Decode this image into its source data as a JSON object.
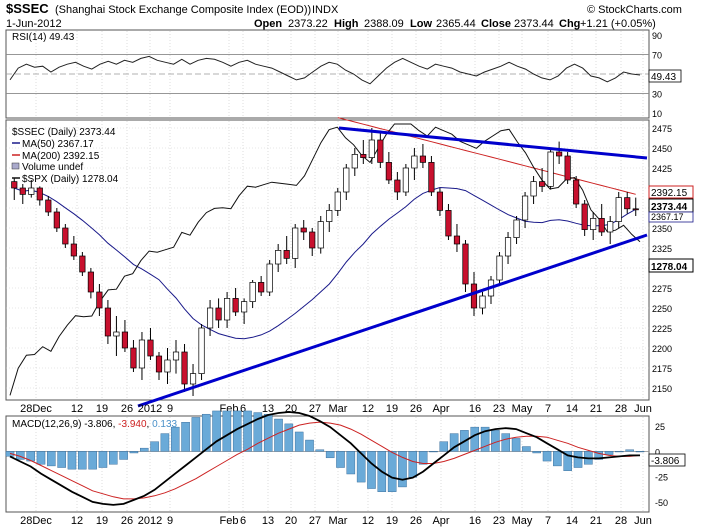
{
  "header": {
    "symbol": "$SSEC",
    "name": "(Shanghai Stock Exchange Composite Index (EOD))",
    "exchange": "INDX",
    "date": "1-Jun-2012",
    "open_label": "Open",
    "open": "2373.22",
    "high_label": "High",
    "high": "2388.09",
    "low_label": "Low",
    "low": "2365.44",
    "close_label": "Close",
    "close": "2373.44",
    "chg_label": "Chg",
    "chg": "+1.21 (+0.05%)",
    "watermark": "© StockCharts.com"
  },
  "x_axis": {
    "labels": [
      "28Dec",
      "12",
      "19",
      "26",
      "2012",
      "9",
      "Feb",
      "6",
      "13",
      "20",
      "27",
      "Mar",
      "12",
      "19",
      "26",
      "Apr",
      "16",
      "23",
      "May",
      "7",
      "14",
      "21",
      "28",
      "Jun"
    ]
  },
  "rsi": {
    "legend": "RSI(14) 49.43",
    "ticks": [
      "90",
      "70",
      "50",
      "30",
      "10"
    ],
    "last": "49.43",
    "values": [
      44,
      56,
      60,
      57,
      58,
      52,
      57,
      60,
      62,
      58,
      55,
      60,
      63,
      60,
      64,
      62,
      66,
      68,
      64,
      62,
      60,
      65,
      60,
      64,
      66,
      65,
      62,
      58,
      62,
      64,
      60,
      58,
      56,
      52,
      48,
      44,
      46,
      52,
      58,
      62,
      60,
      54,
      50,
      44,
      40,
      48,
      56,
      62,
      66,
      62,
      58,
      55,
      60,
      58,
      56,
      52,
      50,
      48,
      52,
      55,
      58,
      62,
      58,
      55,
      50,
      46,
      44,
      48,
      56,
      60,
      56,
      48,
      46,
      42,
      46,
      52,
      50,
      49
    ]
  },
  "price": {
    "legend_main": "$SSEC (Daily) 2373.44",
    "legend_ma50": "MA(50) 2367.17",
    "legend_ma200": "MA(200) 2392.15",
    "legend_vol": "Volume undef",
    "legend_spx": "$SPX (Daily) 1278.04",
    "ticks": [
      "2475",
      "2450",
      "2425",
      "2400",
      "2375",
      "2350",
      "2325",
      "2300",
      "2275",
      "2250",
      "2225",
      "2200",
      "2175",
      "2150"
    ],
    "tag_ma200": "2392.15",
    "tag_close": "2373.44",
    "tag_ma50": "2367.17",
    "tag_spx": "1278.04",
    "colors": {
      "ma50": "#1a1a8a",
      "ma200": "#cc2222",
      "trend": "#0000cc",
      "up": "#ffffff",
      "down": "#c8102e"
    }
  },
  "chart_data": {
    "type": "candlestick",
    "series": [
      {
        "name": "$SSEC (Daily)",
        "ohlc": [
          [
            2408,
            2412,
            2385,
            2400
          ],
          [
            2400,
            2405,
            2380,
            2392
          ],
          [
            2392,
            2410,
            2388,
            2400
          ],
          [
            2400,
            2402,
            2378,
            2385
          ],
          [
            2385,
            2390,
            2365,
            2370
          ],
          [
            2370,
            2375,
            2345,
            2350
          ],
          [
            2350,
            2355,
            2325,
            2330
          ],
          [
            2330,
            2340,
            2310,
            2315
          ],
          [
            2315,
            2320,
            2290,
            2295
          ],
          [
            2295,
            2300,
            2262,
            2270
          ],
          [
            2270,
            2280,
            2240,
            2250
          ],
          [
            2250,
            2260,
            2205,
            2215
          ],
          [
            2215,
            2240,
            2190,
            2220
          ],
          [
            2220,
            2235,
            2195,
            2200
          ],
          [
            2200,
            2210,
            2170,
            2175
          ],
          [
            2175,
            2220,
            2160,
            2210
          ],
          [
            2210,
            2225,
            2185,
            2190
          ],
          [
            2190,
            2195,
            2160,
            2170
          ],
          [
            2170,
            2200,
            2155,
            2185
          ],
          [
            2185,
            2210,
            2168,
            2195
          ],
          [
            2195,
            2205,
            2145,
            2155
          ],
          [
            2155,
            2180,
            2140,
            2168
          ],
          [
            2168,
            2230,
            2160,
            2225
          ],
          [
            2225,
            2260,
            2215,
            2250
          ],
          [
            2250,
            2262,
            2225,
            2235
          ],
          [
            2235,
            2270,
            2225,
            2262
          ],
          [
            2262,
            2275,
            2240,
            2245
          ],
          [
            2245,
            2262,
            2230,
            2258
          ],
          [
            2258,
            2285,
            2250,
            2282
          ],
          [
            2282,
            2290,
            2265,
            2270
          ],
          [
            2270,
            2310,
            2265,
            2305
          ],
          [
            2305,
            2330,
            2295,
            2322
          ],
          [
            2322,
            2340,
            2305,
            2312
          ],
          [
            2312,
            2355,
            2300,
            2350
          ],
          [
            2350,
            2360,
            2335,
            2345
          ],
          [
            2345,
            2350,
            2315,
            2325
          ],
          [
            2325,
            2365,
            2318,
            2358
          ],
          [
            2358,
            2380,
            2345,
            2372
          ],
          [
            2372,
            2400,
            2365,
            2395
          ],
          [
            2395,
            2430,
            2385,
            2425
          ],
          [
            2425,
            2450,
            2415,
            2442
          ],
          [
            2442,
            2460,
            2430,
            2438
          ],
          [
            2438,
            2475,
            2430,
            2460
          ],
          [
            2460,
            2470,
            2425,
            2432
          ],
          [
            2432,
            2445,
            2405,
            2410
          ],
          [
            2410,
            2420,
            2385,
            2395
          ],
          [
            2395,
            2430,
            2390,
            2425
          ],
          [
            2425,
            2450,
            2410,
            2440
          ],
          [
            2440,
            2455,
            2425,
            2432
          ],
          [
            2432,
            2440,
            2390,
            2395
          ],
          [
            2395,
            2400,
            2365,
            2372
          ],
          [
            2372,
            2380,
            2335,
            2340
          ],
          [
            2340,
            2355,
            2320,
            2330
          ],
          [
            2330,
            2335,
            2270,
            2280
          ],
          [
            2280,
            2295,
            2240,
            2250
          ],
          [
            2250,
            2270,
            2242,
            2265
          ],
          [
            2265,
            2290,
            2255,
            2285
          ],
          [
            2285,
            2320,
            2280,
            2315
          ],
          [
            2315,
            2345,
            2305,
            2338
          ],
          [
            2338,
            2365,
            2330,
            2360
          ],
          [
            2360,
            2395,
            2350,
            2390
          ],
          [
            2390,
            2415,
            2380,
            2408
          ],
          [
            2408,
            2425,
            2395,
            2402
          ],
          [
            2402,
            2450,
            2398,
            2445
          ],
          [
            2445,
            2458,
            2430,
            2440
          ],
          [
            2440,
            2445,
            2405,
            2410
          ],
          [
            2410,
            2415,
            2375,
            2380
          ],
          [
            2380,
            2385,
            2340,
            2348
          ],
          [
            2348,
            2370,
            2335,
            2362
          ],
          [
            2362,
            2380,
            2340,
            2345
          ],
          [
            2345,
            2365,
            2330,
            2358
          ],
          [
            2358,
            2395,
            2350,
            2388
          ],
          [
            2388,
            2395,
            2368,
            2374
          ],
          [
            2374,
            2388,
            2365,
            2373
          ]
        ]
      },
      {
        "name": "MA(50)",
        "last": 2367.17
      },
      {
        "name": "MA(200)",
        "last": 2392.15
      },
      {
        "name": "$SPX (Daily)",
        "last": 1278.04
      }
    ],
    "ylim": [
      2135,
      2485
    ]
  },
  "macd": {
    "legend": "MACD(12,26,9) -3.806, -3.940, 0.133",
    "legend_parts": [
      "MACD(12,26,9) ",
      "-3.806",
      ", ",
      "-3.940",
      ", ",
      "0.133"
    ],
    "ticks": [
      "25",
      "0",
      "-25",
      "-50"
    ],
    "last": "-3.806",
    "macd_values": [
      -5,
      -10,
      -15,
      -22,
      -28,
      -34,
      -40,
      -45,
      -50,
      -52,
      -53,
      -52,
      -48,
      -44,
      -38,
      -30,
      -22,
      -14,
      -6,
      2,
      10,
      16,
      22,
      27,
      32,
      36,
      38,
      39,
      38,
      35,
      30,
      24,
      16,
      8,
      -2,
      -12,
      -20,
      -26,
      -28,
      -26,
      -20,
      -12,
      -4,
      4,
      10,
      16,
      20,
      22,
      23,
      22,
      18,
      14,
      8,
      2,
      -4,
      -6,
      -7,
      -7,
      -6,
      -5,
      -4,
      -4
    ],
    "signal_values": [
      -2,
      -5,
      -9,
      -14,
      -19,
      -24,
      -29,
      -34,
      -39,
      -42,
      -45,
      -47,
      -47,
      -46,
      -44,
      -41,
      -37,
      -32,
      -27,
      -21,
      -15,
      -9,
      -3,
      2,
      8,
      13,
      18,
      22,
      26,
      28,
      29,
      28,
      26,
      22,
      17,
      11,
      5,
      -1,
      -6,
      -10,
      -12,
      -12,
      -10,
      -7,
      -3,
      1,
      5,
      9,
      12,
      14,
      15,
      15,
      14,
      11,
      8,
      4,
      1,
      -2,
      -4,
      -5,
      -5,
      -4
    ]
  }
}
